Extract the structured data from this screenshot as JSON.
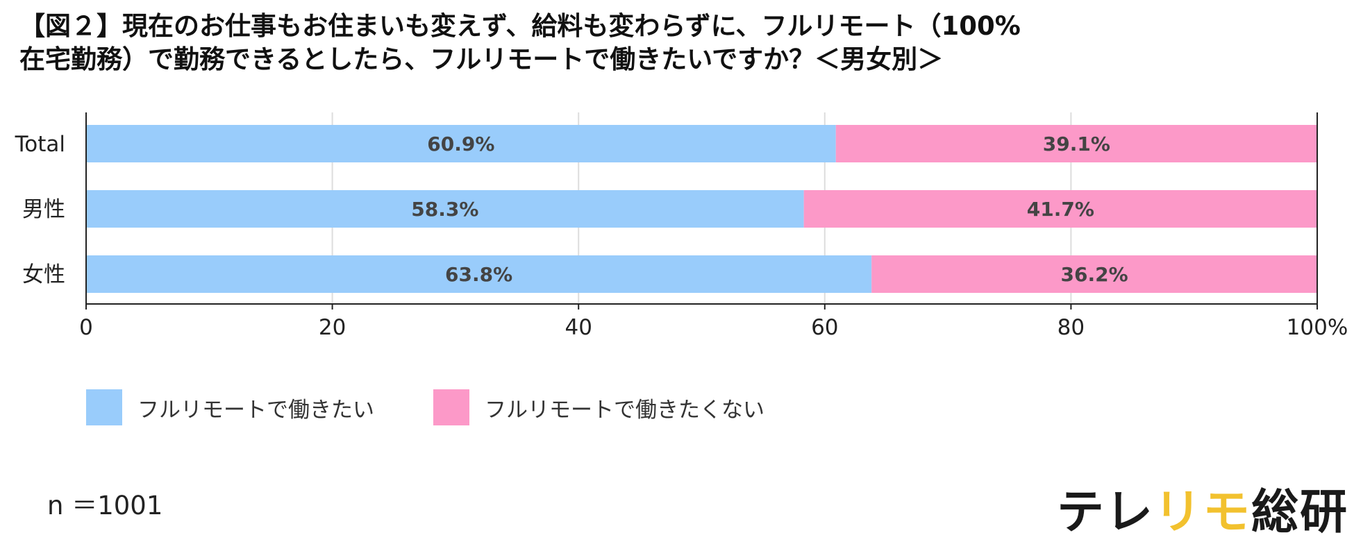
{
  "title": {
    "line1": "【図２】現在のお仕事もお住まいも変えず、給料も変わらずに、フルリモート（100%",
    "line2": "在宅勤務）で勤務できるとしたら、フルリモートで働きたいですか？＜男女別＞"
  },
  "chart_data": {
    "type": "bar",
    "orientation": "horizontal",
    "stacked": true,
    "categories": [
      "Total",
      "男性",
      "女性"
    ],
    "series": [
      {
        "name": "フルリモートで働きたい",
        "values": [
          60.9,
          58.3,
          63.8
        ],
        "labels": [
          "60.9%",
          "58.3%",
          "63.8%"
        ],
        "color": "#99ccfb"
      },
      {
        "name": "フルリモートで働きたくない",
        "values": [
          39.1,
          41.7,
          36.2
        ],
        "labels": [
          "39.1%",
          "41.7%",
          "36.2%"
        ],
        "color": "#fc99c8"
      }
    ],
    "xlim": [
      0,
      100
    ],
    "xticks": [
      0,
      20,
      40,
      60,
      80,
      100
    ],
    "xtick_labels": [
      "0",
      "20",
      "40",
      "60",
      "80",
      "100%"
    ],
    "grid": true,
    "legend_position": "bottom-left"
  },
  "footnote": "n ＝1001",
  "brand": {
    "part1": "テレ",
    "part2": "リモ",
    "part3": "総研",
    "color_main": "#1a1a1a",
    "color_accent": "#f2c12e"
  }
}
